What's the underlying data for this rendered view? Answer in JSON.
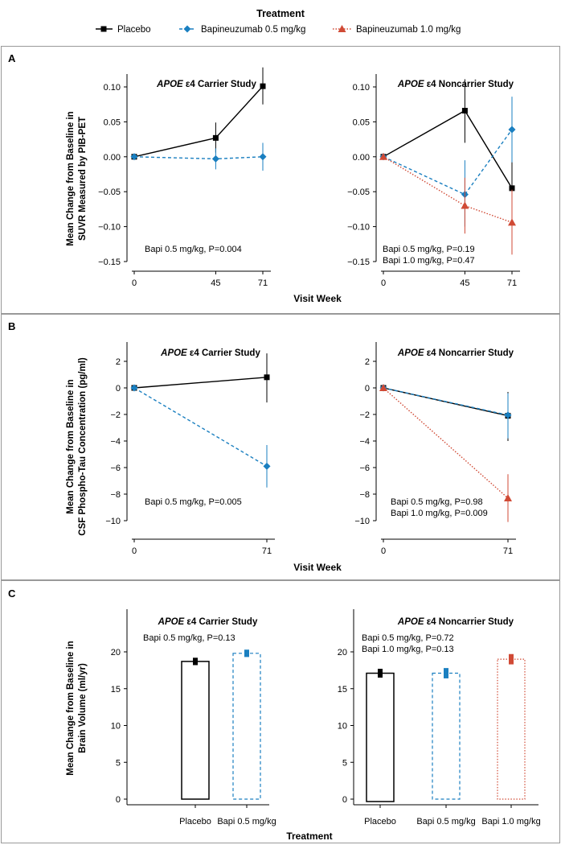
{
  "legend": {
    "title": "Treatment",
    "items": [
      {
        "label": "Placebo",
        "color": "#000000",
        "marker": "square",
        "dash": "solid"
      },
      {
        "label": "Bapineuzumab 0.5 mg/kg",
        "color": "#1a7fc0",
        "marker": "diamond",
        "dash": "dashed"
      },
      {
        "label": "Bapineuzumab 1.0 mg/kg",
        "color": "#d04a35",
        "marker": "triangle",
        "dash": "dotted"
      }
    ]
  },
  "panels": {
    "A": {
      "letter": "A",
      "ylabel_line1": "Mean Change from Baseline in",
      "ylabel_line2": "SUVR Measured by PIB-PET",
      "xlabel": "Visit Week"
    },
    "B": {
      "letter": "B",
      "ylabel_line1": "Mean Change from Baseline in",
      "ylabel_line2": "CSF Phospho-Tau Concentration (pg/ml)",
      "xlabel": "Visit Week"
    },
    "C": {
      "letter": "C",
      "ylabel_line1": "Mean Change from Baseline in",
      "ylabel_line2": "Brain Volume (ml/yr)",
      "xlabel": "Treatment"
    }
  },
  "chart_data": [
    {
      "id": "A-carrier",
      "type": "line",
      "title_italic": "APOE",
      "title_rest": " ε4 Carrier Study",
      "x": [
        0,
        45,
        71
      ],
      "xticks": [
        "0",
        "45",
        "71"
      ],
      "ylim": [
        -0.15,
        0.12
      ],
      "yticks": [
        "0.10",
        "0.05",
        "0.00",
        "−0.05",
        "−0.10",
        "−0.15"
      ],
      "ytick_values": [
        0.1,
        0.05,
        0.0,
        -0.05,
        -0.1,
        -0.15
      ],
      "series": [
        {
          "name": "Placebo",
          "color": "#000000",
          "marker": "square",
          "dash": "solid",
          "values": [
            0.0,
            0.027,
            0.101
          ],
          "err_low": [
            0.0,
            0.006,
            0.075
          ],
          "err_high": [
            0.0,
            0.049,
            0.128
          ]
        },
        {
          "name": "Bapineuzumab 0.5 mg/kg",
          "color": "#1a7fc0",
          "marker": "diamond",
          "dash": "dashed",
          "values": [
            0.0,
            -0.003,
            0.0
          ],
          "err_low": [
            0.0,
            -0.018,
            -0.02
          ],
          "err_high": [
            0.0,
            0.012,
            0.02
          ]
        }
      ],
      "annotations": [
        "Bapi 0.5 mg/kg, P=0.004"
      ]
    },
    {
      "id": "A-noncarrier",
      "type": "line",
      "title_italic": "APOE",
      "title_rest": " ε4 Noncarrier Study",
      "x": [
        0,
        45,
        71
      ],
      "xticks": [
        "0",
        "45",
        "71"
      ],
      "ylim": [
        -0.15,
        0.12
      ],
      "yticks": [
        "0.10",
        "0.05",
        "0.00",
        "−0.05",
        "−0.10",
        "−0.15"
      ],
      "ytick_values": [
        0.1,
        0.05,
        0.0,
        -0.05,
        -0.1,
        -0.15
      ],
      "series": [
        {
          "name": "Placebo",
          "color": "#000000",
          "marker": "square",
          "dash": "solid",
          "values": [
            0.0,
            0.066,
            -0.045
          ],
          "err_low": [
            0.0,
            0.02,
            -0.09
          ],
          "err_high": [
            0.0,
            0.111,
            0.0
          ]
        },
        {
          "name": "Bapineuzumab 0.5 mg/kg",
          "color": "#1a7fc0",
          "marker": "diamond",
          "dash": "dashed",
          "values": [
            0.0,
            -0.054,
            0.039
          ],
          "err_low": [
            0.0,
            -0.1,
            -0.008
          ],
          "err_high": [
            0.0,
            -0.005,
            0.086
          ]
        },
        {
          "name": "Bapineuzumab 1.0 mg/kg",
          "color": "#d04a35",
          "marker": "triangle",
          "dash": "dotted",
          "values": [
            0.0,
            -0.07,
            -0.094
          ],
          "err_low": [
            0.0,
            -0.11,
            -0.14
          ],
          "err_high": [
            0.0,
            -0.03,
            -0.047
          ]
        }
      ],
      "annotations": [
        "Bapi 0.5 mg/kg, P=0.19",
        "Bapi 1.0 mg/kg, P=0.47"
      ]
    },
    {
      "id": "B-carrier",
      "type": "line",
      "title_italic": "APOE",
      "title_rest": " ε4 Carrier Study",
      "x": [
        0,
        71
      ],
      "xticks": [
        "0",
        "71"
      ],
      "ylim": [
        -10,
        2.8
      ],
      "yticks": [
        "2",
        "0",
        "−2",
        "−4",
        "−6",
        "−8",
        "−10"
      ],
      "ytick_values": [
        2,
        0,
        -2,
        -4,
        -6,
        -8,
        -10
      ],
      "series": [
        {
          "name": "Placebo",
          "color": "#000000",
          "marker": "square",
          "dash": "solid",
          "values": [
            0.0,
            0.8
          ],
          "err_low": [
            0.0,
            -1.1
          ],
          "err_high": [
            0.0,
            2.6
          ]
        },
        {
          "name": "Bapineuzumab 0.5 mg/kg",
          "color": "#1a7fc0",
          "marker": "diamond",
          "dash": "dashed",
          "values": [
            0.0,
            -5.9
          ],
          "err_low": [
            0.0,
            -7.5
          ],
          "err_high": [
            0.0,
            -4.3
          ]
        }
      ],
      "annotations": [
        "Bapi 0.5 mg/kg, P=0.005"
      ]
    },
    {
      "id": "B-noncarrier",
      "type": "line",
      "title_italic": "APOE",
      "title_rest": " ε4 Noncarrier Study",
      "x": [
        0,
        71
      ],
      "xticks": [
        "0",
        "71"
      ],
      "ylim": [
        -10,
        2.8
      ],
      "yticks": [
        "2",
        "0",
        "−2",
        "−4",
        "−6",
        "−8",
        "−10"
      ],
      "ytick_values": [
        2,
        0,
        -2,
        -4,
        -6,
        -8,
        -10
      ],
      "series": [
        {
          "name": "Placebo",
          "color": "#000000",
          "marker": "square",
          "dash": "solid",
          "values": [
            0.0,
            -2.1
          ],
          "err_low": [
            0.0,
            -4.0
          ],
          "err_high": [
            0.0,
            -0.3
          ]
        },
        {
          "name": "Bapineuzumab 0.5 mg/kg",
          "color": "#1a7fc0",
          "marker": "diamond",
          "dash": "dashed",
          "values": [
            0.0,
            -2.05
          ],
          "err_low": [
            0.0,
            -3.8
          ],
          "err_high": [
            0.0,
            -0.4
          ]
        },
        {
          "name": "Bapineuzumab 1.0 mg/kg",
          "color": "#d04a35",
          "marker": "triangle",
          "dash": "dotted",
          "values": [
            0.0,
            -8.3
          ],
          "err_low": [
            0.0,
            -10.1
          ],
          "err_high": [
            0.0,
            -6.5
          ]
        }
      ],
      "annotations": [
        "Bapi 0.5 mg/kg, P=0.98",
        "Bapi 1.0 mg/kg, P=0.009"
      ]
    },
    {
      "id": "C-carrier",
      "type": "bar",
      "title_italic": "APOE",
      "title_rest": " ε4 Carrier Study",
      "categories": [
        "Placebo",
        "Bapi 0.5 mg/kg"
      ],
      "values": [
        18.7,
        19.8
      ],
      "err": [
        0.5,
        0.5
      ],
      "colors": [
        "#000000",
        "#1a7fc0"
      ],
      "dash": [
        "solid",
        "dashed"
      ],
      "ylim": [
        0,
        25
      ],
      "yticks": [
        "20",
        "15",
        "10",
        "5",
        "0"
      ],
      "ytick_values": [
        20,
        15,
        10,
        5,
        0
      ],
      "annotations": [
        "Bapi 0.5 mg/kg, P=0.13"
      ]
    },
    {
      "id": "C-noncarrier",
      "type": "bar",
      "title_italic": "APOE",
      "title_rest": " ε4 Noncarrier Study",
      "categories": [
        "Placebo",
        "Bapi 0.5 mg/kg",
        "Bapi 1.0 mg/kg"
      ],
      "values": [
        17.1,
        17.1,
        19.0
      ],
      "err": [
        0.6,
        0.7,
        0.7
      ],
      "colors": [
        "#000000",
        "#1a7fc0",
        "#d04a35"
      ],
      "dash": [
        "solid",
        "dashed",
        "dotted"
      ],
      "ylim": [
        0,
        25
      ],
      "yticks": [
        "20",
        "15",
        "10",
        "5",
        "0"
      ],
      "ytick_values": [
        20,
        15,
        10,
        5,
        0
      ],
      "annotations": [
        "Bapi 0.5 mg/kg, P=0.72",
        "Bapi 1.0 mg/kg, P=0.13"
      ]
    }
  ]
}
